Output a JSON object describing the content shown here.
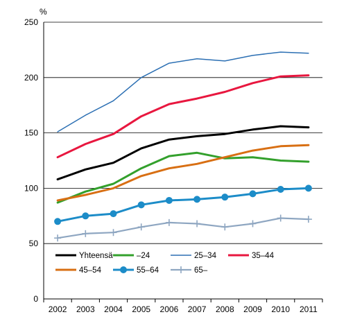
{
  "chart_data": {
    "type": "line",
    "y_unit": "%",
    "x": [
      "2002",
      "2003",
      "2004",
      "2005",
      "2006",
      "2007",
      "2008",
      "2009",
      "2010",
      "2011"
    ],
    "ylim": [
      0,
      250
    ],
    "yticks": [
      0,
      50,
      100,
      150,
      200,
      250
    ],
    "grid": "horizontal",
    "legend_position": "inside-bottom",
    "series": [
      {
        "name": "Yhteensä",
        "color": "#000000",
        "marker": "none",
        "values": [
          108,
          117,
          123,
          136,
          144,
          147,
          149,
          153,
          156,
          155
        ]
      },
      {
        "name": "–24",
        "color": "#33a02c",
        "marker": "none",
        "values": [
          87,
          97,
          104,
          118,
          129,
          132,
          127,
          128,
          125,
          124
        ]
      },
      {
        "name": "25–34",
        "color": "#2b6fb3",
        "marker": "none",
        "values": [
          151,
          166,
          179,
          200,
          213,
          217,
          215,
          220,
          223,
          222
        ]
      },
      {
        "name": "35–44",
        "color": "#e8173f",
        "marker": "none",
        "values": [
          128,
          140,
          149,
          165,
          176,
          181,
          187,
          195,
          201,
          202
        ]
      },
      {
        "name": "45–54",
        "color": "#d86f13",
        "marker": "none",
        "values": [
          89,
          94,
          100,
          111,
          118,
          122,
          128,
          134,
          138,
          139
        ]
      },
      {
        "name": "55–64",
        "color": "#1c8cc8",
        "marker": "circle",
        "values": [
          70,
          75,
          77,
          85,
          89,
          90,
          92,
          95,
          99,
          100
        ]
      },
      {
        "name": "65–",
        "color": "#8ea6c1",
        "marker": "plus",
        "values": [
          55,
          59,
          60,
          65,
          69,
          68,
          65,
          68,
          73,
          72
        ]
      }
    ]
  }
}
